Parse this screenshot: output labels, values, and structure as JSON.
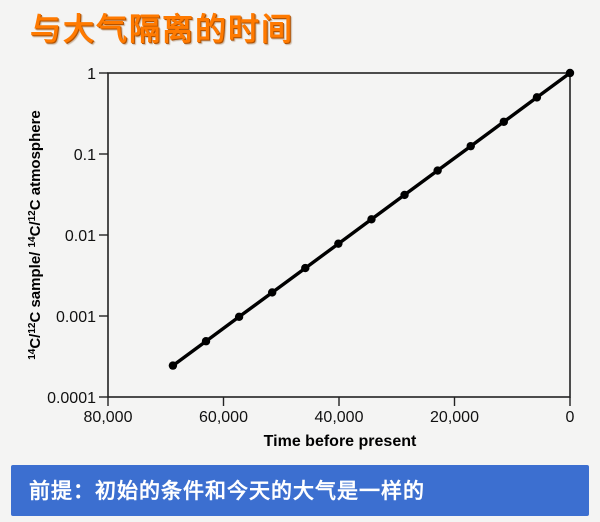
{
  "slide": {
    "title": "与大气隔离的时间",
    "footer": "前提：初始的条件和今天的大气是一样的",
    "title_color": "#ff7a00",
    "banner_color": "#3c6fd0"
  },
  "chart_data": {
    "type": "line",
    "title": "",
    "xlabel": "Time before present",
    "ylabel_parts": [
      "14",
      "C/",
      "12",
      "C sample/ ",
      "14",
      "C/",
      "12",
      "C atmosphere"
    ],
    "x_reversed": true,
    "xlim": [
      0,
      80000
    ],
    "x_ticks": [
      80000,
      60000,
      40000,
      20000,
      0
    ],
    "x_tick_labels": [
      "80,000",
      "60,000",
      "40,000",
      "20,000",
      "0"
    ],
    "y_scale": "log",
    "ylim": [
      0.0001,
      1
    ],
    "y_ticks": [
      1,
      0.1,
      0.01,
      0.001,
      0.0001
    ],
    "y_tick_labels": [
      "1",
      "0.1",
      "0.01",
      "0.001",
      "0.0001"
    ],
    "grid": false,
    "series": [
      {
        "color": "#000000",
        "x": [
          0,
          5730,
          11460,
          17190,
          22920,
          28650,
          34380,
          40110,
          45840,
          51570,
          57300,
          63030,
          68760
        ],
        "y": [
          1,
          0.5,
          0.25,
          0.125,
          0.0625,
          0.03125,
          0.015625,
          0.0078125,
          0.00390625,
          0.001953125,
          0.0009765625,
          0.00048828125,
          0.000244140625
        ]
      }
    ]
  }
}
